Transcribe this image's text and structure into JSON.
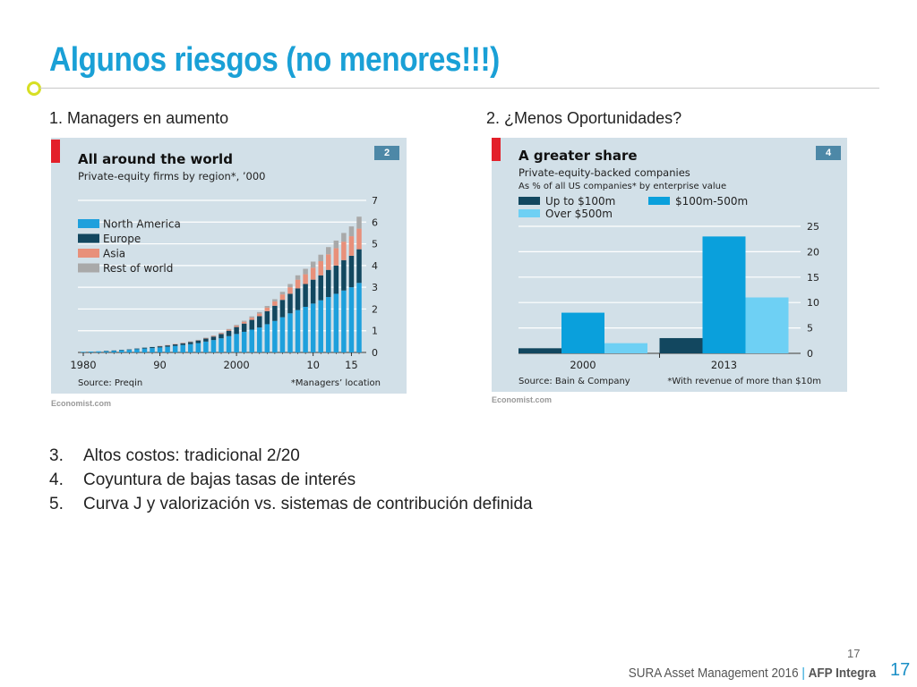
{
  "title": "Algunos riesgos (no menores!!!)",
  "sub_left": "1. Managers en aumento",
  "sub_right": "2. ¿Menos Oportunidades?",
  "points": [
    {
      "n": "3.",
      "text": "Altos costos: tradicional 2/20"
    },
    {
      "n": "4.",
      "text": "Coyuntura de bajas tasas de interés"
    },
    {
      "n": "5.",
      "text": "Curva J y valorización vs. sistemas de contribución definida"
    }
  ],
  "footer": {
    "company": "SURA Asset Management 2016",
    "sep": "|",
    "brand": "AFP Integra"
  },
  "page_small": "17",
  "page_big": "17",
  "colors": {
    "title": "#1aa0d6",
    "panel": "#d2e0e8",
    "north_america": "#1ea0dc",
    "europe": "#12475f",
    "asia": "#e8907a",
    "rest": "#a9a9a9",
    "up100": "#12475f",
    "mid": "#0aa0dc",
    "over500": "#6ed0f4"
  },
  "chart_data": [
    {
      "type": "bar",
      "stacked": true,
      "title": "All around the world",
      "subtitle": "Private-equity firms by region*, ’000",
      "tab": "2",
      "source": "Source: Preqin",
      "footnote": "*Managers’ location",
      "branding": "Economist.com",
      "x_tick_labels": [
        "1980",
        "90",
        "2000",
        "10",
        "15"
      ],
      "x_tick_years": [
        1980,
        1990,
        2000,
        2010,
        2015
      ],
      "y_ticks": [
        "0",
        "1",
        "2",
        "3",
        "4",
        "5",
        "6",
        "7"
      ],
      "ylim": [
        0,
        7
      ],
      "x": [
        1980,
        1981,
        1982,
        1983,
        1984,
        1985,
        1986,
        1987,
        1988,
        1989,
        1990,
        1991,
        1992,
        1993,
        1994,
        1995,
        1996,
        1997,
        1998,
        1999,
        2000,
        2001,
        2002,
        2003,
        2004,
        2005,
        2006,
        2007,
        2008,
        2009,
        2010,
        2011,
        2012,
        2013,
        2014,
        2015,
        2016
      ],
      "series": [
        {
          "name": "North America",
          "values": [
            0.03,
            0.04,
            0.05,
            0.06,
            0.08,
            0.1,
            0.12,
            0.15,
            0.18,
            0.2,
            0.23,
            0.26,
            0.3,
            0.34,
            0.38,
            0.43,
            0.5,
            0.57,
            0.65,
            0.75,
            0.85,
            0.95,
            1.05,
            1.15,
            1.3,
            1.45,
            1.62,
            1.8,
            1.95,
            2.1,
            2.25,
            2.4,
            2.55,
            2.7,
            2.85,
            3.0,
            3.2
          ]
        },
        {
          "name": "Europe",
          "values": [
            0.0,
            0.0,
            0.0,
            0.01,
            0.01,
            0.02,
            0.02,
            0.03,
            0.04,
            0.05,
            0.06,
            0.07,
            0.08,
            0.09,
            0.1,
            0.12,
            0.14,
            0.16,
            0.2,
            0.25,
            0.32,
            0.38,
            0.45,
            0.52,
            0.6,
            0.7,
            0.8,
            0.9,
            1.0,
            1.05,
            1.1,
            1.15,
            1.25,
            1.3,
            1.4,
            1.45,
            1.55
          ]
        },
        {
          "name": "Asia",
          "values": [
            0.0,
            0.0,
            0.0,
            0.0,
            0.0,
            0.0,
            0.0,
            0.0,
            0.0,
            0.0,
            0.01,
            0.01,
            0.01,
            0.01,
            0.02,
            0.02,
            0.03,
            0.03,
            0.04,
            0.05,
            0.06,
            0.08,
            0.1,
            0.12,
            0.16,
            0.2,
            0.25,
            0.3,
            0.4,
            0.45,
            0.55,
            0.65,
            0.72,
            0.8,
            0.85,
            0.9,
            0.95
          ]
        },
        {
          "name": "Rest of world",
          "values": [
            0.0,
            0.0,
            0.0,
            0.0,
            0.0,
            0.0,
            0.0,
            0.0,
            0.0,
            0.0,
            0.0,
            0.0,
            0.0,
            0.0,
            0.01,
            0.01,
            0.01,
            0.02,
            0.02,
            0.03,
            0.04,
            0.05,
            0.06,
            0.07,
            0.08,
            0.1,
            0.12,
            0.15,
            0.2,
            0.25,
            0.28,
            0.3,
            0.33,
            0.35,
            0.4,
            0.45,
            0.55
          ]
        }
      ]
    },
    {
      "type": "bar",
      "title": "A greater share",
      "subtitle": "Private-equity-backed companies",
      "subtitle2": "As % of all US companies* by enterprise value",
      "tab": "4",
      "source": "Source: Bain & Company",
      "footnote": "*With revenue of more than $10m",
      "branding": "Economist.com",
      "categories": [
        "2000",
        "2013"
      ],
      "y_ticks": [
        "0",
        "5",
        "10",
        "15",
        "20",
        "25"
      ],
      "ylim": [
        0,
        25
      ],
      "series": [
        {
          "name": "Up to $100m",
          "values": [
            1,
            3
          ]
        },
        {
          "name": "$100m-500m",
          "values": [
            8,
            23
          ]
        },
        {
          "name": "Over $500m",
          "values": [
            2,
            11
          ]
        }
      ]
    }
  ]
}
